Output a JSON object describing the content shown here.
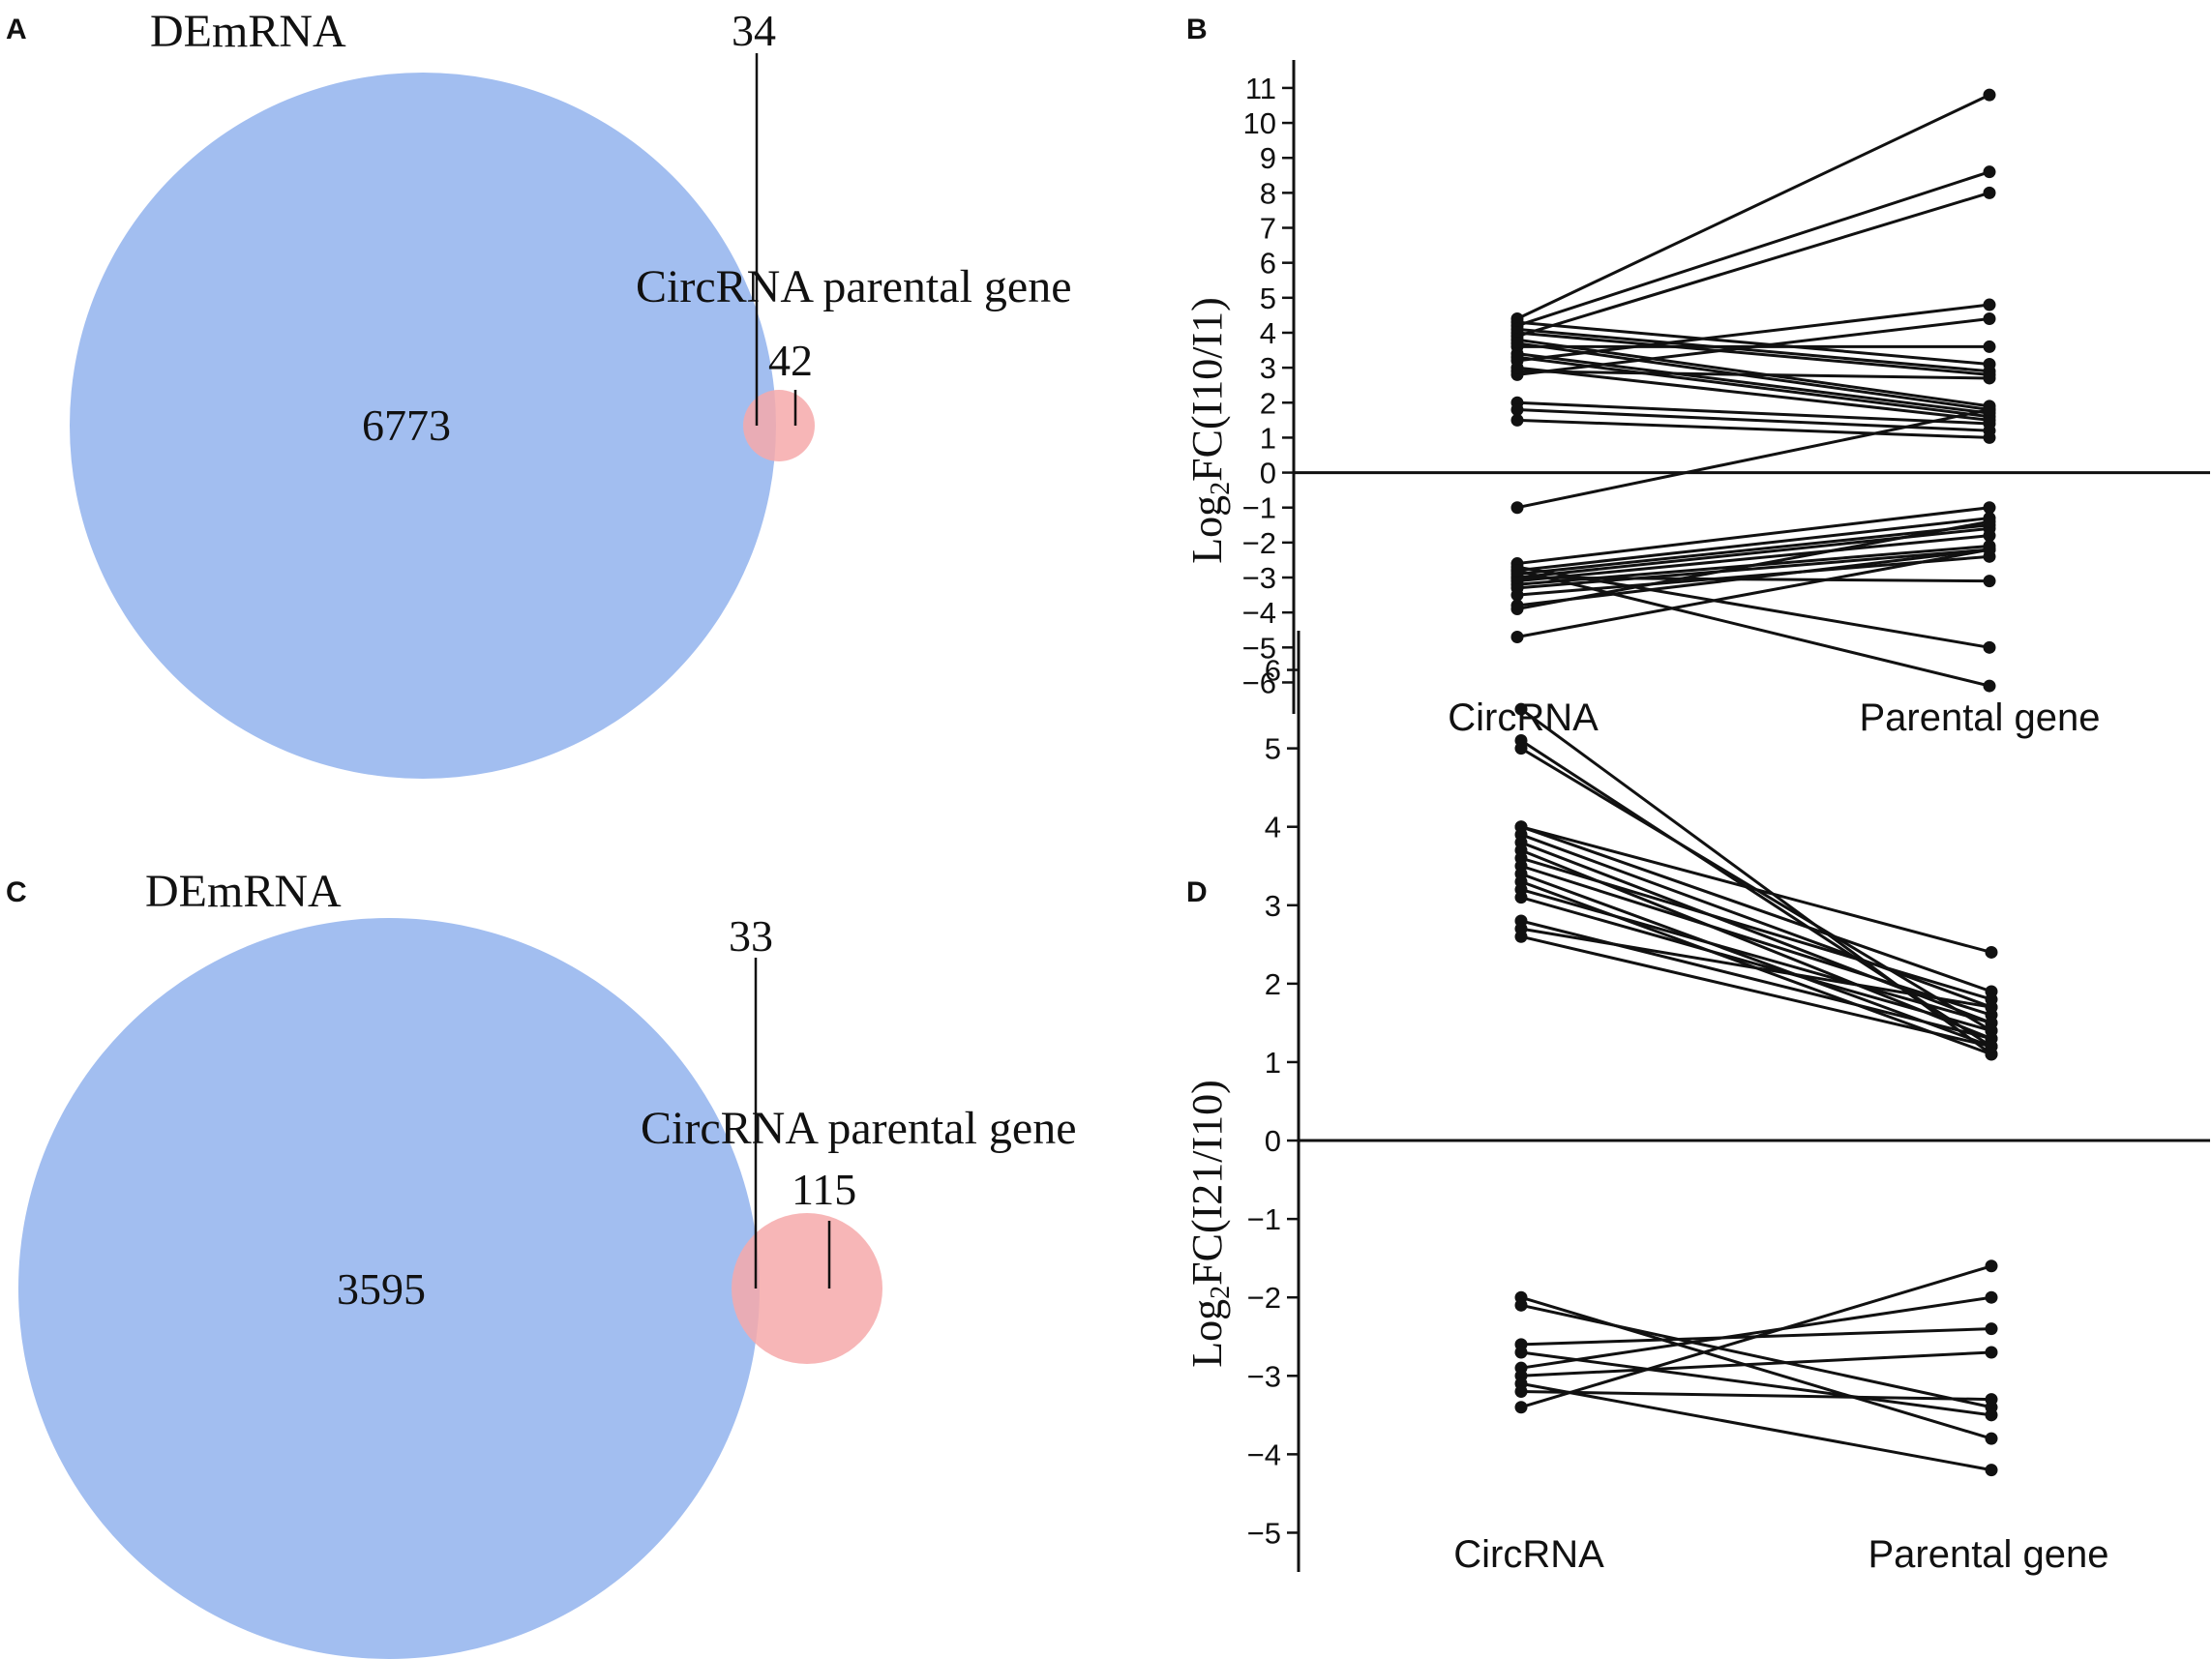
{
  "colors": {
    "demrna": "#a2bef0",
    "parental": "#f6a9aa",
    "line": "#111111"
  },
  "chart_data": [
    {
      "type": "venn",
      "panel": "A",
      "sets": [
        {
          "name": "DEmRNA",
          "only_count": 6773
        },
        {
          "name": "CircRNA parental gene",
          "only_count": 42
        }
      ],
      "overlap": 34
    },
    {
      "type": "line",
      "panel": "B",
      "ylabel_main": "Log",
      "ylabel_sub": "2",
      "ylabel_rest": "FC(I10/I1)",
      "categories": [
        "CircRNA",
        "Parental gene"
      ],
      "ylim": [
        -6.9,
        11.8
      ],
      "yticks": [
        "11",
        "10",
        "9",
        "8",
        "7",
        "6",
        "5",
        "4",
        "3",
        "2",
        "1",
        "0",
        "-1",
        "-2",
        "-3",
        "-4",
        "-5",
        "-6"
      ],
      "pairs": [
        [
          4.4,
          10.8
        ],
        [
          4.2,
          8.6
        ],
        [
          3.9,
          8.0
        ],
        [
          3.2,
          4.8
        ],
        [
          2.8,
          4.4
        ],
        [
          3.6,
          3.6
        ],
        [
          4.3,
          3.1
        ],
        [
          4.1,
          2.9
        ],
        [
          4.0,
          2.8
        ],
        [
          2.9,
          2.7
        ],
        [
          3.8,
          1.9
        ],
        [
          3.7,
          1.8
        ],
        [
          3.4,
          1.7
        ],
        [
          3.3,
          1.6
        ],
        [
          3.0,
          1.5
        ],
        [
          2.0,
          1.4
        ],
        [
          1.8,
          1.2
        ],
        [
          1.5,
          1.0
        ],
        [
          -1.0,
          1.8
        ],
        [
          -2.6,
          -1.0
        ],
        [
          -2.8,
          -1.3
        ],
        [
          -2.9,
          -1.5
        ],
        [
          -3.0,
          -1.6
        ],
        [
          -3.1,
          -1.8
        ],
        [
          -3.2,
          -2.1
        ],
        [
          -3.3,
          -2.2
        ],
        [
          -3.5,
          -2.4
        ],
        [
          -3.8,
          -2.2
        ],
        [
          -3.9,
          -1.4
        ],
        [
          -3.0,
          -3.1
        ],
        [
          -2.7,
          -5.0
        ],
        [
          -2.8,
          -6.1
        ],
        [
          -4.7,
          -2.2
        ]
      ]
    },
    {
      "type": "venn",
      "panel": "C",
      "sets": [
        {
          "name": "DEmRNA",
          "only_count": 3595
        },
        {
          "name": "CircRNA parental gene",
          "only_count": 115
        }
      ],
      "overlap": 33
    },
    {
      "type": "line",
      "panel": "D",
      "ylabel_main": "Log",
      "ylabel_sub": "2",
      "ylabel_rest": "FC(I21/I10)",
      "categories": [
        "CircRNA",
        "Parental gene"
      ],
      "ylim": [
        -5.5,
        6.5
      ],
      "yticks": [
        "6",
        "5",
        "4",
        "3",
        "2",
        "1",
        "0",
        "-1",
        "-2",
        "-3",
        "-4",
        "-5"
      ],
      "pairs": [
        [
          5.5,
          1.1
        ],
        [
          5.1,
          1.2
        ],
        [
          5.0,
          1.4
        ],
        [
          4.0,
          2.4
        ],
        [
          4.0,
          1.9
        ],
        [
          3.9,
          1.7
        ],
        [
          3.8,
          1.5
        ],
        [
          3.7,
          1.3
        ],
        [
          3.6,
          1.8
        ],
        [
          3.5,
          1.6
        ],
        [
          3.4,
          1.2
        ],
        [
          3.3,
          1.1
        ],
        [
          3.2,
          1.5
        ],
        [
          3.1,
          1.4
        ],
        [
          2.8,
          1.3
        ],
        [
          2.7,
          1.7
        ],
        [
          2.6,
          1.2
        ],
        [
          -2.0,
          -3.8
        ],
        [
          -2.1,
          -3.4
        ],
        [
          -2.6,
          -2.4
        ],
        [
          -2.7,
          -3.5
        ],
        [
          -2.9,
          -2.0
        ],
        [
          -3.0,
          -2.7
        ],
        [
          -3.1,
          -4.2
        ],
        [
          -3.2,
          -3.3
        ],
        [
          -3.4,
          -1.6
        ]
      ]
    }
  ]
}
